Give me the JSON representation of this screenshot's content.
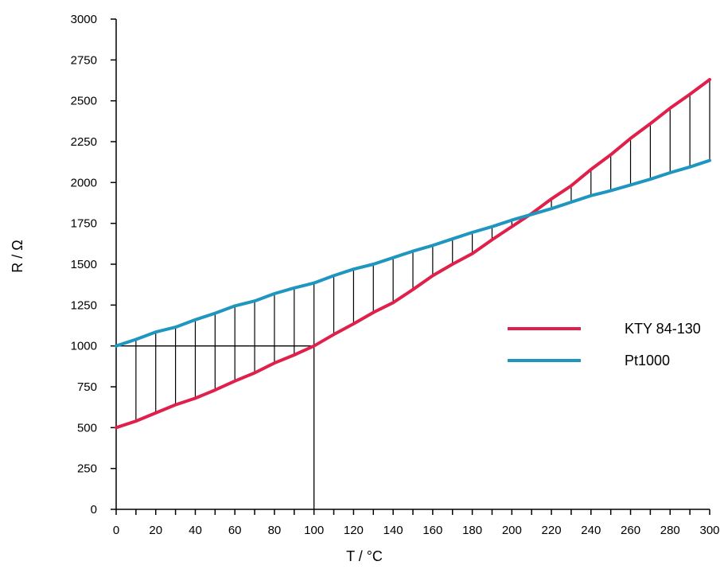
{
  "chart_data": {
    "type": "line",
    "title": "",
    "xlabel": "T  /  °C",
    "ylabel": "R  /  Ω",
    "xlim": [
      0,
      300
    ],
    "ylim": [
      0,
      3000
    ],
    "xticks": [
      "0",
      "20",
      "40",
      "60",
      "80",
      "100",
      "120",
      "140",
      "160",
      "180",
      "200",
      "220",
      "240",
      "260",
      "280",
      "300"
    ],
    "yticks": [
      "0",
      "250",
      "500",
      "750",
      "1000",
      "1250",
      "1500",
      "1750",
      "2000",
      "2250",
      "2500",
      "2750",
      "3000"
    ],
    "x": [
      0,
      10,
      20,
      30,
      40,
      50,
      60,
      70,
      80,
      90,
      100,
      110,
      120,
      130,
      140,
      150,
      160,
      170,
      180,
      190,
      200,
      210,
      220,
      230,
      240,
      250,
      260,
      270,
      280,
      290,
      300
    ],
    "series": [
      {
        "name": "KTY 84-130",
        "color": "#e0204a",
        "values": [
          500,
          540,
          590,
          640,
          680,
          730,
          785,
          835,
          895,
          945,
          1000,
          1070,
          1135,
          1205,
          1265,
          1345,
          1430,
          1500,
          1565,
          1650,
          1730,
          1810,
          1900,
          1980,
          2080,
          2170,
          2270,
          2360,
          2455,
          2540,
          2630
        ]
      },
      {
        "name": "Pt1000",
        "color": "#1e96c0",
        "values": [
          1000,
          1040,
          1085,
          1115,
          1160,
          1200,
          1245,
          1275,
          1320,
          1355,
          1385,
          1430,
          1470,
          1500,
          1540,
          1580,
          1615,
          1655,
          1695,
          1730,
          1770,
          1805,
          1840,
          1880,
          1920,
          1950,
          1985,
          2020,
          2060,
          2095,
          2135
        ]
      }
    ],
    "reference_point": {
      "x": 100,
      "y": 1000
    },
    "hatch_x": [
      10,
      20,
      30,
      40,
      50,
      60,
      70,
      80,
      90,
      100,
      110,
      120,
      130,
      140,
      150,
      160,
      170,
      180,
      190,
      200,
      210,
      220,
      230,
      240,
      250,
      260,
      270,
      280,
      290,
      300
    ],
    "legend_position": "right",
    "grid": false
  }
}
